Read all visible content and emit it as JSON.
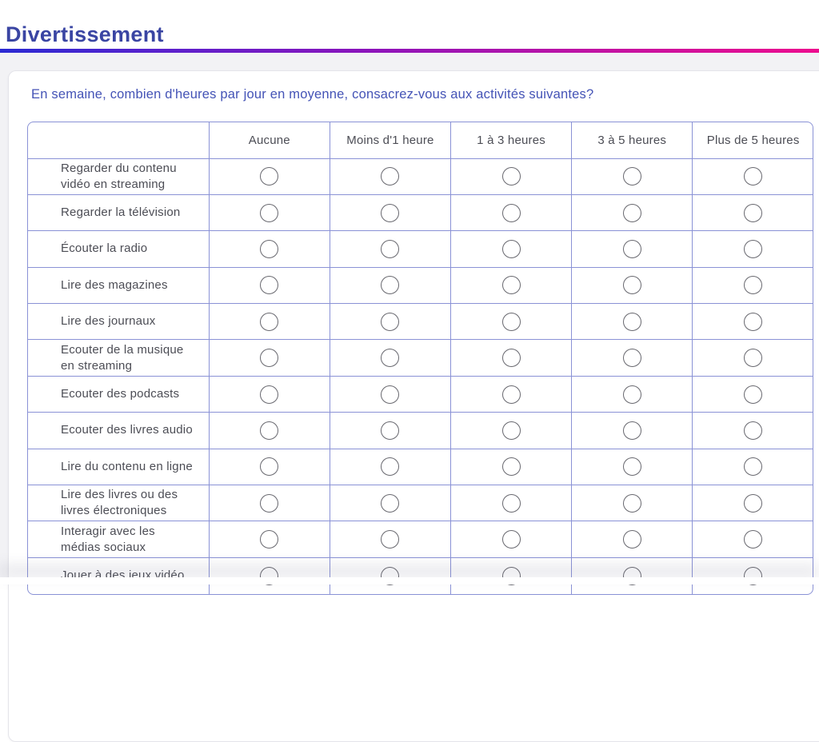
{
  "header": {
    "title": "Divertissement"
  },
  "divider": {
    "gradient_colors": [
      "#2b2ad3",
      "#8c14bb",
      "#ed0c8e"
    ]
  },
  "question": {
    "text": "En semaine, combien d'heures par jour en moyenne, consacrez-vous aux activités suivantes?"
  },
  "matrix": {
    "columns": [
      "Aucune",
      "Moins d'1 heure",
      "1 à 3 heures",
      "3 à 5 heures",
      "Plus de 5 heures"
    ],
    "rows": [
      {
        "label": "Regarder du contenu vidéo en streaming",
        "selected": null
      },
      {
        "label": "Regarder la télévision",
        "selected": null
      },
      {
        "label": "Écouter la radio",
        "selected": null
      },
      {
        "label": "Lire des magazines",
        "selected": null
      },
      {
        "label": "Lire des journaux",
        "selected": null
      },
      {
        "label": "Ecouter de la musique en streaming",
        "selected": null
      },
      {
        "label": "Ecouter des podcasts",
        "selected": null
      },
      {
        "label": "Ecouter des livres audio",
        "selected": null
      },
      {
        "label": "Lire du contenu en ligne",
        "selected": null
      },
      {
        "label": "Lire des livres ou des livres électroniques",
        "selected": null
      },
      {
        "label": "Interagir avec les médias sociaux",
        "selected": null
      },
      {
        "label": "Jouer à des jeux vidéo",
        "selected": null
      }
    ]
  },
  "colors": {
    "title_text": "#3a45a3",
    "question_text": "#4453b6",
    "table_border": "#8a92d6",
    "cell_text": "#4c4d55",
    "radio_border": "#68686f",
    "page_background": "#f2f2f5"
  }
}
